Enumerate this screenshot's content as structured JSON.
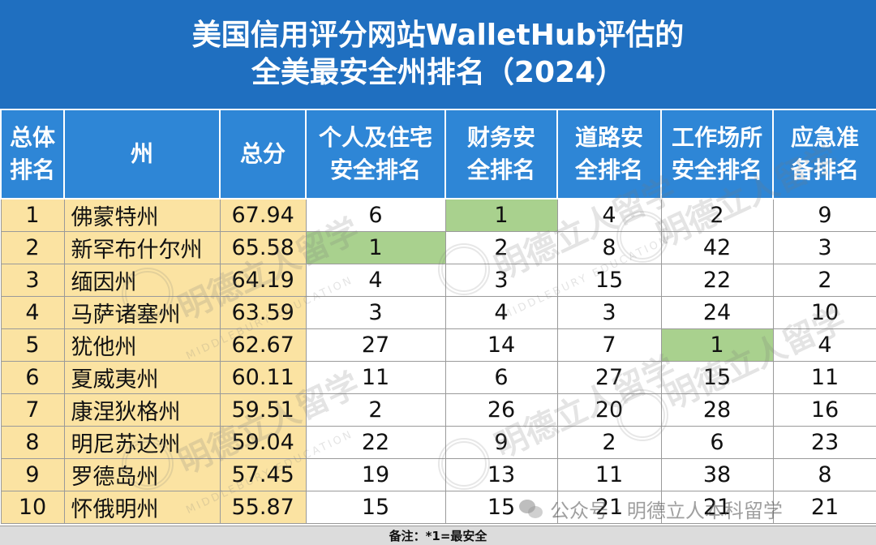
{
  "title": {
    "line1": "美国信用评分网站WalletHub评估的",
    "line2": "全美最安全州排名（2024）"
  },
  "headers": [
    [
      "总体",
      "排名"
    ],
    [
      "州"
    ],
    [
      "总分"
    ],
    [
      "个人及住宅",
      "安全排名"
    ],
    [
      "财务安",
      "全排名"
    ],
    [
      "道路安",
      "全排名"
    ],
    [
      "工作场所",
      "安全排名"
    ],
    [
      "应急准",
      "备排名"
    ]
  ],
  "rows": [
    {
      "rank": "1",
      "state": "佛蒙特州",
      "score": "67.94",
      "personal": "6",
      "financial": "1",
      "road": "4",
      "workplace": "2",
      "emergency": "9"
    },
    {
      "rank": "2",
      "state": "新罕布什尔州",
      "score": "65.58",
      "personal": "1",
      "financial": "2",
      "road": "8",
      "workplace": "42",
      "emergency": "3"
    },
    {
      "rank": "3",
      "state": "缅因州",
      "score": "64.19",
      "personal": "4",
      "financial": "3",
      "road": "15",
      "workplace": "22",
      "emergency": "2"
    },
    {
      "rank": "4",
      "state": "马萨诸塞州",
      "score": "63.59",
      "personal": "3",
      "financial": "4",
      "road": "3",
      "workplace": "24",
      "emergency": "10"
    },
    {
      "rank": "5",
      "state": "犹他州",
      "score": "62.67",
      "personal": "27",
      "financial": "14",
      "road": "7",
      "workplace": "1",
      "emergency": "4"
    },
    {
      "rank": "6",
      "state": "夏威夷州",
      "score": "60.11",
      "personal": "11",
      "financial": "6",
      "road": "27",
      "workplace": "15",
      "emergency": "11"
    },
    {
      "rank": "7",
      "state": "康涅狄格州",
      "score": "59.51",
      "personal": "2",
      "financial": "26",
      "road": "20",
      "workplace": "28",
      "emergency": "16"
    },
    {
      "rank": "8",
      "state": "明尼苏达州",
      "score": "59.04",
      "personal": "22",
      "financial": "9",
      "road": "2",
      "workplace": "6",
      "emergency": "23"
    },
    {
      "rank": "9",
      "state": "罗德岛州",
      "score": "57.45",
      "personal": "19",
      "financial": "13",
      "road": "11",
      "workplace": "38",
      "emergency": "8"
    },
    {
      "rank": "10",
      "state": "怀俄明州",
      "score": "55.87",
      "personal": "15",
      "financial": "15",
      "road": "21",
      "workplace": "21",
      "emergency": "21"
    }
  ],
  "footer": "备注：*1=最安全",
  "watermark": {
    "text": "明德立人留学",
    "sub": "MIDDLEBURY EDUCATION"
  },
  "credit": "公众号 · 明德立人本科留学",
  "colors": {
    "title_bg": "#1f6fc0",
    "header_bg": "#2e86d6",
    "left_cols_bg": "#fbe3a2",
    "highlight_bg": "#a9d18e",
    "footer_bg": "#dcdcdc"
  },
  "icons": {
    "credit_icon": "wechat-icon"
  }
}
